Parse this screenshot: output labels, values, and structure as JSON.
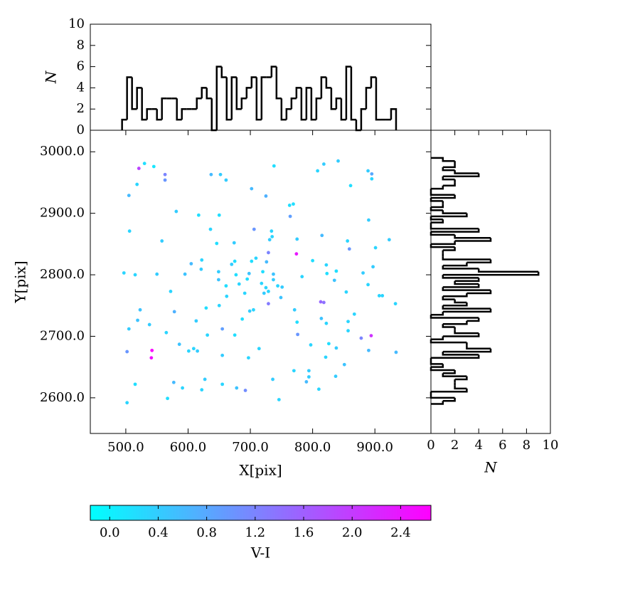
{
  "chart_data": [
    {
      "type": "scatter",
      "xlabel": "X[pix]",
      "ylabel": "Y[pix]",
      "x": [
        521,
        530,
        545,
        563,
        563,
        518,
        505,
        581,
        506,
        558,
        497,
        515,
        550,
        572,
        523,
        578,
        519,
        538,
        505,
        565,
        502,
        542,
        541,
        586,
        601,
        609,
        615,
        515,
        577,
        591,
        567,
        502,
        622,
        627,
        613,
        629,
        595,
        605,
        622,
        621,
        617,
        637,
        652,
        661,
        650,
        636,
        646,
        649,
        649,
        661,
        662,
        650,
        631,
        655,
        655,
        655,
        678,
        692,
        697,
        714,
        675,
        687,
        670,
        675,
        677,
        682,
        691,
        695,
        674,
        702,
        725,
        738,
        706,
        702,
        709,
        698,
        699,
        705,
        718,
        720,
        725,
        722,
        729,
        729,
        726,
        729,
        731,
        735,
        734,
        737,
        737,
        744,
        749,
        751,
        746,
        736,
        763,
        769,
        764,
        775,
        774,
        771,
        775,
        776,
        783,
        770,
        794,
        794,
        790,
        810,
        800,
        808,
        818,
        815,
        813,
        818,
        814,
        822,
        822,
        823,
        797,
        826,
        821,
        838,
        835,
        841,
        861,
        856,
        859,
        854,
        838,
        837,
        851,
        857,
        857,
        867,
        881,
        889,
        895,
        895,
        890,
        901,
        889,
        897,
        878,
        894,
        890,
        907,
        912,
        923,
        933,
        934
      ],
      "y": [
        2973,
        2981,
        2976,
        2963,
        2954,
        2947,
        2929,
        2903,
        2871,
        2855,
        2803,
        2800,
        2801,
        2773,
        2743,
        2740,
        2726,
        2719,
        2712,
        2706,
        2675,
        2677,
        2665,
        2687,
        2676,
        2680,
        2676,
        2622,
        2625,
        2616,
        2599,
        2592,
        2613,
        2630,
        2725,
        2746,
        2801,
        2818,
        2824,
        2809,
        2897,
        2963,
        2963,
        2954,
        2897,
        2874,
        2851,
        2805,
        2792,
        2782,
        2765,
        2750,
        2702,
        2712,
        2669,
        2622,
        2616,
        2612,
        2665,
        2680,
        2702,
        2728,
        2817,
        2822,
        2800,
        2785,
        2770,
        2793,
        2852,
        2940,
        2928,
        2977,
        2874,
        2822,
        2827,
        2802,
        2741,
        2743,
        2786,
        2805,
        2779,
        2770,
        2753,
        2773,
        2821,
        2836,
        2857,
        2862,
        2871,
        2801,
        2792,
        2782,
        2763,
        2780,
        2597,
        2630,
        2913,
        2915,
        2895,
        2858,
        2834,
        2743,
        2723,
        2703,
        2797,
        2644,
        2644,
        2634,
        2626,
        2614,
        2823,
        2969,
        2980,
        2864,
        2756,
        2755,
        2729,
        2721,
        2816,
        2802,
        2686,
        2688,
        2666,
        2806,
        2791,
        2985,
        2945,
        2855,
        2842,
        2772,
        2681,
        2635,
        2654,
        2709,
        2724,
        2736,
        2803,
        2969,
        2964,
        2956,
        2889,
        2844,
        2784,
        2813,
        2697,
        2701,
        2677,
        2766,
        2766,
        2857,
        2753,
        2674
      ],
      "c": [
        1.9,
        0.2,
        0.1,
        1.2,
        1.0,
        0.3,
        0.6,
        0.4,
        0.3,
        0.4,
        0.3,
        0.3,
        0.4,
        0.3,
        0.5,
        0.7,
        0.5,
        0.4,
        0.4,
        0.3,
        1.0,
        2.6,
        2.5,
        0.5,
        0.3,
        0.3,
        0.4,
        0.2,
        0.6,
        0.3,
        0.2,
        0.3,
        0.3,
        0.4,
        0.4,
        0.2,
        0.5,
        0.6,
        0.3,
        0.4,
        0.2,
        0.6,
        0.4,
        0.4,
        0.2,
        0.3,
        0.2,
        0.4,
        0.5,
        0.2,
        0.3,
        0.3,
        0.3,
        0.9,
        0.4,
        0.3,
        0.5,
        1.1,
        0.3,
        0.3,
        0.2,
        0.2,
        0.4,
        0.2,
        0.2,
        0.3,
        0.3,
        0.2,
        0.4,
        0.6,
        0.7,
        0.2,
        1.0,
        0.2,
        0.3,
        0.5,
        0.4,
        0.3,
        0.3,
        0.2,
        0.3,
        0.4,
        1.3,
        0.3,
        0.6,
        1.2,
        0.4,
        0.3,
        0.3,
        0.5,
        0.4,
        0.3,
        0.5,
        0.4,
        0.3,
        0.4,
        0.2,
        0.2,
        0.9,
        0.4,
        2.4,
        0.4,
        0.2,
        1.0,
        0.3,
        0.3,
        0.4,
        0.4,
        0.6,
        0.3,
        0.2,
        0.3,
        0.4,
        0.6,
        1.5,
        1.4,
        0.5,
        0.3,
        0.3,
        0.2,
        0.3,
        0.2,
        0.3,
        0.2,
        0.5,
        0.4,
        0.2,
        0.3,
        1.0,
        0.3,
        0.4,
        0.4,
        0.5,
        0.3,
        0.3,
        0.3,
        0.4,
        0.4,
        0.8,
        0.3,
        0.4,
        0.3,
        0.3,
        0.4,
        1.2,
        2.1,
        0.6,
        0.3,
        0.3,
        0.4,
        0.3,
        0.6
      ],
      "colormap": "cool",
      "clim": [
        -0.16,
        2.65
      ],
      "colorbar_label": "V-I",
      "colorbar_ticks": [
        {
          "value": 0,
          "label": "0.0"
        },
        {
          "value": 0.4,
          "label": "0.4"
        },
        {
          "value": 0.8,
          "label": "0.8"
        },
        {
          "value": 1.2,
          "label": "1.2"
        },
        {
          "value": 1.6,
          "label": "1.6"
        },
        {
          "value": 2.0,
          "label": "2.0"
        },
        {
          "value": 2.4,
          "label": "2.4"
        }
      ],
      "xlim": [
        443,
        990
      ],
      "ylim": [
        2542,
        3035
      ],
      "xticks": [
        {
          "value": 500,
          "label": "500.0"
        },
        {
          "value": 600,
          "label": "600.0"
        },
        {
          "value": 700,
          "label": "700.0"
        },
        {
          "value": 800,
          "label": "800.0"
        },
        {
          "value": 900,
          "label": "900.0"
        }
      ],
      "yticks": [
        {
          "value": 2600,
          "label": "2600.0"
        },
        {
          "value": 2700,
          "label": "2700.0"
        },
        {
          "value": 2800,
          "label": "2800.0"
        },
        {
          "value": 2900,
          "label": "2900.0"
        },
        {
          "value": 3000,
          "label": "3000.0"
        }
      ]
    },
    {
      "type": "histogram",
      "orientation": "vertical",
      "ylabel": "N",
      "color": "#000000",
      "bins": [
        494,
        502,
        510,
        518,
        526,
        534,
        542,
        550,
        558,
        566,
        574,
        582,
        590,
        598,
        606,
        614,
        622,
        630,
        638,
        646,
        654,
        662,
        670,
        678,
        686,
        694,
        702,
        710,
        718,
        726,
        734,
        742,
        750,
        758,
        766,
        774,
        782,
        790,
        798,
        806,
        814,
        822,
        830,
        838,
        846,
        854,
        862,
        870,
        878,
        886,
        894,
        902,
        910,
        918,
        926,
        934
      ],
      "counts": [
        1,
        5,
        2,
        4,
        1,
        2,
        2,
        1,
        3,
        3,
        3,
        1,
        2,
        2,
        2,
        3,
        4,
        3,
        0,
        6,
        5,
        1,
        5,
        2,
        3,
        4,
        5,
        1,
        5,
        5,
        6,
        3,
        1,
        2,
        3,
        4,
        1,
        4,
        1,
        3,
        5,
        4,
        2,
        3,
        1,
        6,
        1,
        0,
        2,
        4,
        5,
        1,
        1,
        1,
        2
      ],
      "xlim": [
        443,
        990
      ],
      "ylim": [
        0,
        10
      ],
      "yticks": [
        0,
        2,
        4,
        6,
        8,
        10
      ]
    },
    {
      "type": "histogram",
      "orientation": "horizontal",
      "xlabel": "N",
      "color": "#000000",
      "bins": [
        2590,
        2595,
        2600,
        2605,
        2610,
        2615,
        2620,
        2625,
        2630,
        2635,
        2640,
        2645,
        2650,
        2655,
        2660,
        2665,
        2670,
        2675,
        2680,
        2685,
        2690,
        2695,
        2700,
        2705,
        2710,
        2715,
        2720,
        2725,
        2730,
        2735,
        2740,
        2745,
        2750,
        2755,
        2760,
        2765,
        2770,
        2775,
        2780,
        2785,
        2790,
        2795,
        2800,
        2805,
        2810,
        2815,
        2820,
        2825,
        2830,
        2835,
        2840,
        2845,
        2850,
        2855,
        2860,
        2865,
        2870,
        2875,
        2880,
        2885,
        2890,
        2895,
        2900,
        2905,
        2910,
        2915,
        2920,
        2925,
        2930,
        2935,
        2940,
        2945,
        2950,
        2955,
        2960,
        2965,
        2970,
        2975,
        2980,
        2985,
        2990
      ],
      "counts": [
        1,
        2,
        0,
        0,
        3,
        2,
        2,
        2,
        3,
        1,
        2,
        0,
        1,
        0,
        0,
        4,
        1,
        5,
        3,
        3,
        0,
        1,
        4,
        2,
        2,
        1,
        3,
        4,
        0,
        1,
        5,
        1,
        3,
        2,
        1,
        3,
        5,
        1,
        4,
        2,
        4,
        1,
        9,
        4,
        1,
        3,
        5,
        1,
        1,
        1,
        2,
        0,
        2,
        5,
        2,
        0,
        4,
        0,
        0,
        1,
        0,
        3,
        1,
        0,
        1,
        1,
        0,
        2,
        0,
        0,
        1,
        2,
        2,
        1,
        4,
        2,
        1,
        2,
        2,
        1
      ],
      "xlim": [
        0,
        10
      ],
      "xticks": [
        0,
        2,
        4,
        6,
        8,
        10
      ],
      "ylim": [
        2542,
        3035
      ]
    }
  ]
}
